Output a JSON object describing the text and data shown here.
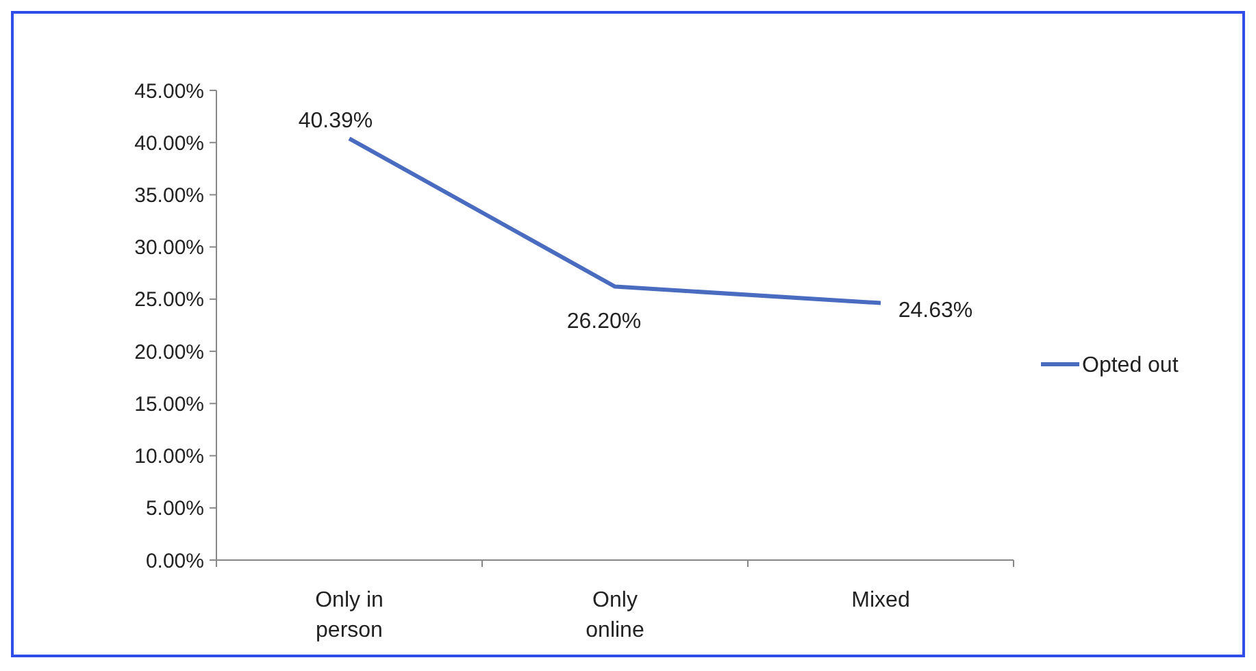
{
  "chart_data": {
    "type": "line",
    "categories": [
      "Only in person",
      "Only online",
      "Mixed"
    ],
    "series": [
      {
        "name": "Opted out",
        "color": "#4a6cc0",
        "values": [
          40.39,
          26.2,
          24.63
        ],
        "value_labels": [
          "40.39%",
          "26.20%",
          "24.63%"
        ]
      }
    ],
    "ylim": [
      0,
      45
    ],
    "yticks": [
      {
        "value": 0,
        "label": "0.00%"
      },
      {
        "value": 5,
        "label": "5.00%"
      },
      {
        "value": 10,
        "label": "10.00%"
      },
      {
        "value": 15,
        "label": "15.00%"
      },
      {
        "value": 20,
        "label": "20.00%"
      },
      {
        "value": 25,
        "label": "25.00%"
      },
      {
        "value": 30,
        "label": "30.00%"
      },
      {
        "value": 35,
        "label": "35.00%"
      },
      {
        "value": 40,
        "label": "40.00%"
      },
      {
        "value": 45,
        "label": "45.00%"
      }
    ],
    "legend": "right",
    "marker": "none",
    "line_style": "solid"
  }
}
